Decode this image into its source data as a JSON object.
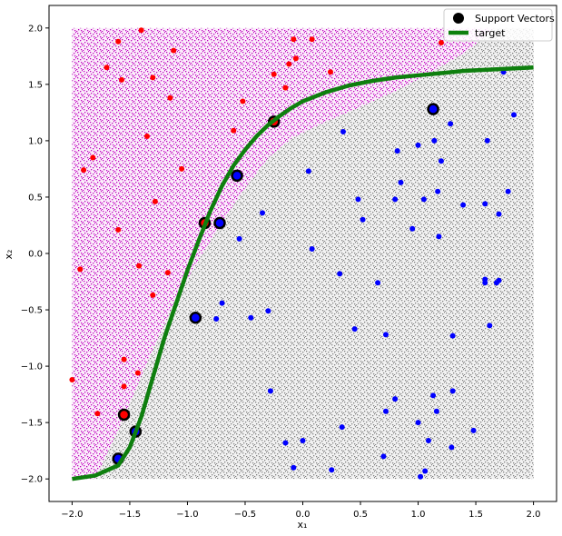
{
  "chart_data": {
    "type": "scatter",
    "xlabel": "x₁",
    "ylabel": "x₂",
    "xlim": [
      -2.2,
      2.2
    ],
    "ylim": [
      -2.2,
      2.2
    ],
    "xticks": [
      {
        "v": -2.0,
        "label": "−2.0"
      },
      {
        "v": -1.5,
        "label": "−1.5"
      },
      {
        "v": -1.0,
        "label": "−1.0"
      },
      {
        "v": -0.5,
        "label": "−0.5"
      },
      {
        "v": 0.0,
        "label": "0.0"
      },
      {
        "v": 0.5,
        "label": "0.5"
      },
      {
        "v": 1.0,
        "label": "1.0"
      },
      {
        "v": 1.5,
        "label": "1.5"
      },
      {
        "v": 2.0,
        "label": "2.0"
      }
    ],
    "yticks": [
      {
        "v": -2.0,
        "label": "−2.0"
      },
      {
        "v": -1.5,
        "label": "−1.5"
      },
      {
        "v": -1.0,
        "label": "−1.0"
      },
      {
        "v": -0.5,
        "label": "−0.5"
      },
      {
        "v": 0.0,
        "label": "0.0"
      },
      {
        "v": 0.5,
        "label": "0.5"
      },
      {
        "v": 1.0,
        "label": "1.0"
      },
      {
        "v": 1.5,
        "label": "1.5"
      },
      {
        "v": 2.0,
        "label": "2.0"
      }
    ],
    "grid": false,
    "legend_position": "top-right",
    "legend": [
      {
        "label": "Support Vectors",
        "kind": "marker"
      },
      {
        "label": "target",
        "kind": "line"
      }
    ],
    "colors": {
      "region_class1": "#bf00bf",
      "region_class2": "#808080",
      "class1_points": "#ff0000",
      "class2_points": "#0000ff",
      "support_vector_edge": "#000000",
      "target_line": "#0e7f0e"
    },
    "target_curve": [
      [
        -2.0,
        -2.0
      ],
      [
        -1.8,
        -1.97
      ],
      [
        -1.6,
        -1.88
      ],
      [
        -1.5,
        -1.72
      ],
      [
        -1.4,
        -1.45
      ],
      [
        -1.3,
        -1.1
      ],
      [
        -1.2,
        -0.75
      ],
      [
        -1.1,
        -0.45
      ],
      [
        -1.0,
        -0.15
      ],
      [
        -0.9,
        0.12
      ],
      [
        -0.8,
        0.38
      ],
      [
        -0.7,
        0.6
      ],
      [
        -0.6,
        0.78
      ],
      [
        -0.5,
        0.92
      ],
      [
        -0.4,
        1.04
      ],
      [
        -0.3,
        1.14
      ],
      [
        -0.2,
        1.22
      ],
      [
        -0.1,
        1.29
      ],
      [
        0.0,
        1.35
      ],
      [
        0.2,
        1.43
      ],
      [
        0.4,
        1.49
      ],
      [
        0.6,
        1.53
      ],
      [
        0.8,
        1.56
      ],
      [
        1.0,
        1.58
      ],
      [
        1.2,
        1.6
      ],
      [
        1.4,
        1.62
      ],
      [
        1.6,
        1.63
      ],
      [
        1.8,
        1.64
      ],
      [
        2.0,
        1.65
      ]
    ],
    "decision_boundary": [
      [
        -1.8,
        -2.0
      ],
      [
        -1.55,
        -1.45
      ],
      [
        -1.3,
        -0.85
      ],
      [
        -1.1,
        -0.4
      ],
      [
        -0.9,
        -0.05
      ],
      [
        -0.7,
        0.28
      ],
      [
        -0.5,
        0.58
      ],
      [
        -0.3,
        0.85
      ],
      [
        -0.1,
        1.02
      ],
      [
        0.2,
        1.17
      ],
      [
        0.5,
        1.3
      ],
      [
        0.8,
        1.44
      ],
      [
        1.1,
        1.6
      ],
      [
        1.4,
        1.78
      ],
      [
        1.55,
        1.9
      ],
      [
        1.65,
        2.0
      ]
    ],
    "series": [
      {
        "points": [
          [
            -1.6,
            1.88
          ],
          [
            -1.4,
            1.98
          ],
          [
            -1.12,
            1.8
          ],
          [
            -1.7,
            1.65
          ],
          [
            -1.57,
            1.54
          ],
          [
            -1.3,
            1.56
          ],
          [
            -1.15,
            1.38
          ],
          [
            -1.35,
            1.04
          ],
          [
            -0.6,
            1.09
          ],
          [
            -0.52,
            1.35
          ],
          [
            -1.05,
            0.75
          ],
          [
            -1.82,
            0.85
          ],
          [
            -1.9,
            0.74
          ],
          [
            -1.28,
            0.46
          ],
          [
            -1.6,
            0.21
          ],
          [
            -1.93,
            -0.14
          ],
          [
            -1.42,
            -0.11
          ],
          [
            -1.17,
            -0.17
          ],
          [
            -1.3,
            -0.37
          ],
          [
            -1.55,
            -0.94
          ],
          [
            -1.43,
            -1.06
          ],
          [
            -1.55,
            -1.18
          ],
          [
            -1.78,
            -1.42
          ],
          [
            -2.0,
            -1.12
          ],
          [
            -0.25,
            1.59
          ],
          [
            -0.15,
            1.47
          ],
          [
            -0.12,
            1.68
          ],
          [
            -0.06,
            1.73
          ],
          [
            -0.08,
            1.9
          ],
          [
            0.08,
            1.9
          ],
          [
            0.24,
            1.61
          ],
          [
            1.2,
            1.87
          ]
        ]
      },
      {
        "points": [
          [
            0.35,
            1.08
          ],
          [
            0.05,
            0.73
          ],
          [
            -0.35,
            0.36
          ],
          [
            -0.55,
            0.13
          ],
          [
            0.08,
            0.04
          ],
          [
            0.48,
            0.48
          ],
          [
            0.52,
            0.3
          ],
          [
            0.8,
            0.48
          ],
          [
            0.82,
            0.91
          ],
          [
            1.0,
            0.96
          ],
          [
            0.85,
            0.63
          ],
          [
            1.05,
            0.48
          ],
          [
            1.14,
            1.0
          ],
          [
            1.28,
            1.15
          ],
          [
            1.2,
            0.82
          ],
          [
            1.17,
            0.55
          ],
          [
            1.39,
            0.43
          ],
          [
            1.58,
            0.44
          ],
          [
            1.6,
            1.0
          ],
          [
            1.7,
            0.35
          ],
          [
            1.78,
            0.55
          ],
          [
            1.83,
            1.23
          ],
          [
            1.74,
            1.61
          ],
          [
            0.95,
            0.22
          ],
          [
            1.18,
            0.15
          ],
          [
            0.32,
            -0.18
          ],
          [
            0.65,
            -0.26
          ],
          [
            -0.3,
            -0.51
          ],
          [
            -0.7,
            -0.44
          ],
          [
            -0.75,
            -0.58
          ],
          [
            -0.45,
            -0.57
          ],
          [
            0.45,
            -0.67
          ],
          [
            0.72,
            -0.72
          ],
          [
            1.58,
            -0.23
          ],
          [
            1.58,
            -0.26
          ],
          [
            1.7,
            -0.24
          ],
          [
            1.68,
            -0.26
          ],
          [
            1.62,
            -0.64
          ],
          [
            1.3,
            -0.73
          ],
          [
            0.8,
            -1.29
          ],
          [
            0.72,
            -1.4
          ],
          [
            1.13,
            -1.26
          ],
          [
            1.3,
            -1.22
          ],
          [
            1.16,
            -1.4
          ],
          [
            1.0,
            -1.5
          ],
          [
            1.48,
            -1.57
          ],
          [
            1.09,
            -1.66
          ],
          [
            1.29,
            -1.72
          ],
          [
            0.34,
            -1.54
          ],
          [
            -0.28,
            -1.22
          ],
          [
            -0.15,
            -1.68
          ],
          [
            0.0,
            -1.66
          ],
          [
            0.7,
            -1.8
          ],
          [
            -0.08,
            -1.9
          ],
          [
            0.25,
            -1.92
          ],
          [
            1.06,
            -1.93
          ],
          [
            1.02,
            -1.98
          ]
        ]
      }
    ],
    "support_vectors": [
      {
        "x": -0.25,
        "y": 1.17,
        "cls": 1
      },
      {
        "x": -0.85,
        "y": 0.27,
        "cls": 1
      },
      {
        "x": -1.55,
        "y": -1.43,
        "cls": 1
      },
      {
        "x": -0.57,
        "y": 0.69,
        "cls": 2
      },
      {
        "x": -0.72,
        "y": 0.27,
        "cls": 2
      },
      {
        "x": -0.93,
        "y": -0.57,
        "cls": 2
      },
      {
        "x": -1.45,
        "y": -1.58,
        "cls": 2
      },
      {
        "x": -1.6,
        "y": -1.82,
        "cls": 2
      },
      {
        "x": 1.13,
        "y": 1.28,
        "cls": 2
      }
    ]
  }
}
